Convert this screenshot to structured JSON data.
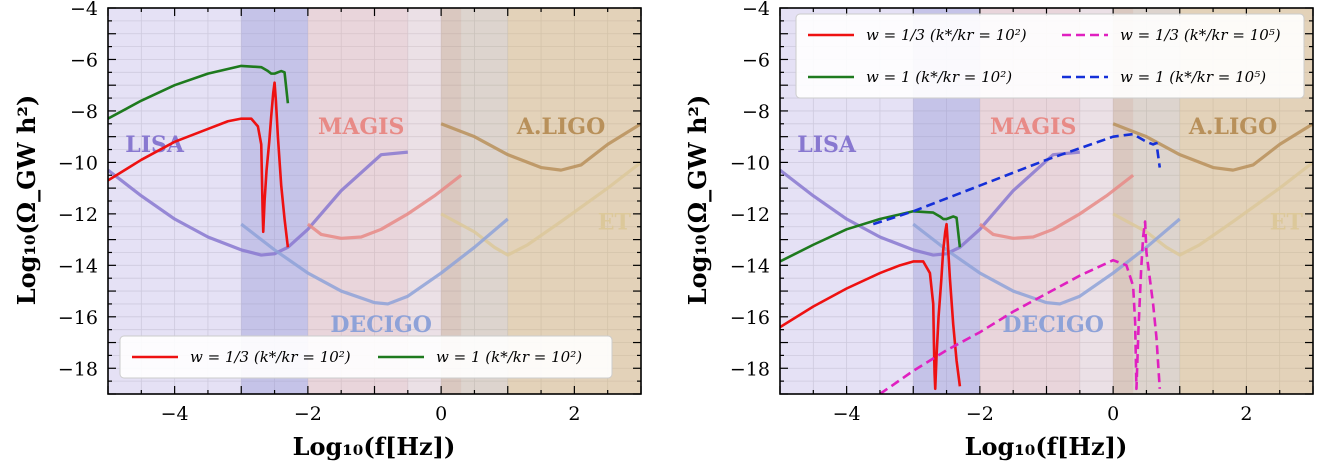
{
  "figure": {
    "axis_labels": {
      "y": "Log₁₀(Ω_GW h²)",
      "x": "Log₁₀(f[Hz])"
    }
  },
  "chart_data": [
    {
      "type": "line",
      "xlim": [
        -5,
        3
      ],
      "ylim": [
        -19,
        -4
      ],
      "xticks": [
        -4,
        -2,
        0,
        2
      ],
      "yticks": [
        -18,
        -16,
        -14,
        -12,
        -10,
        -8,
        -6,
        -4
      ],
      "grid": true,
      "legend_placement": "bottom",
      "detectors": [
        {
          "name": "LISA",
          "label": "LISA",
          "color": "#8878d0",
          "bands": [
            {
              "from": -5,
              "to": -3,
              "opacity": 0.22
            },
            {
              "from": -3,
              "to": -2,
              "opacity": 0.4
            }
          ],
          "curve": {
            "x": [
              -5,
              -4.5,
              -4,
              -3.5,
              -3,
              -2.7,
              -2.5,
              -2.3,
              -2,
              -1.5,
              -0.9,
              -0.5
            ],
            "y": [
              -10.3,
              -11.3,
              -12.2,
              -12.9,
              -13.4,
              -13.6,
              -13.55,
              -13.3,
              -12.6,
              -11.1,
              -9.7,
              -9.6
            ]
          }
        },
        {
          "name": "MAGIS",
          "label": "MAGIS",
          "color": "#e88a86",
          "bands": [
            {
              "from": -2,
              "to": -0.5,
              "opacity": 0.28
            },
            {
              "from": -0.5,
              "to": 0.3,
              "opacity": 0.18
            }
          ],
          "curve": {
            "x": [
              -2,
              -1.8,
              -1.5,
              -1.2,
              -0.9,
              -0.5,
              -0.1,
              0.3
            ],
            "y": [
              -12.4,
              -12.8,
              -12.95,
              -12.9,
              -12.6,
              -12.0,
              -11.3,
              -10.5
            ]
          }
        },
        {
          "name": "A.LIGO",
          "label": "A.LIGO",
          "color": "#b8905a",
          "bands": [
            {
              "from": 0,
              "to": 1,
              "opacity": 0.3
            },
            {
              "from": 1,
              "to": 3,
              "opacity": 0.38
            }
          ],
          "curve": {
            "x": [
              0,
              0.5,
              1,
              1.5,
              1.8,
              2.1,
              2.5,
              3
            ],
            "y": [
              -8.5,
              -9.0,
              -9.7,
              -10.2,
              -10.3,
              -10.1,
              -9.3,
              -8.5
            ]
          }
        },
        {
          "name": "ET",
          "label": "ET",
          "color": "#dcc89a",
          "bands": [
            {
              "from": 1,
              "to": 3,
              "opacity": 0.18
            }
          ],
          "curve": {
            "x": [
              0,
              0.5,
              0.8,
              1.0,
              1.3,
              1.8,
              2.5,
              3
            ],
            "y": [
              -12.0,
              -12.7,
              -13.3,
              -13.6,
              -13.2,
              -12.3,
              -11.0,
              -10.0
            ]
          }
        },
        {
          "name": "DECIGO",
          "label": "DECIGO",
          "color": "#8ea2d8",
          "bands": [
            {
              "from": -3,
              "to": 1,
              "opacity": 0.14
            }
          ],
          "curve": {
            "x": [
              -3,
              -2.5,
              -2,
              -1.5,
              -1,
              -0.8,
              -0.5,
              0,
              0.5,
              1
            ],
            "y": [
              -12.4,
              -13.4,
              -14.3,
              -15.0,
              -15.45,
              -15.5,
              -15.2,
              -14.3,
              -13.3,
              -12.2
            ]
          }
        }
      ],
      "series": [
        {
          "name": "w = 1/3 (k*/kr = 10²)",
          "color": "#ee1111",
          "dash": "solid",
          "x": [
            -5,
            -4.5,
            -4,
            -3.5,
            -3.2,
            -3.0,
            -2.85,
            -2.75,
            -2.7,
            -2.69,
            -2.68,
            -2.67,
            -2.65,
            -2.62,
            -2.58,
            -2.55,
            -2.52,
            -2.5,
            -2.48,
            -2.45,
            -2.4,
            -2.35,
            -2.3
          ],
          "y": [
            -10.7,
            -9.9,
            -9.2,
            -8.7,
            -8.4,
            -8.3,
            -8.3,
            -8.6,
            -9.3,
            -10.5,
            -11.8,
            -12.7,
            -11.5,
            -10.3,
            -9.2,
            -8.2,
            -7.3,
            -6.9,
            -7.6,
            -9.0,
            -10.9,
            -12.2,
            -13.3
          ]
        },
        {
          "name": "w = 1 (k*/kr = 10²)",
          "color": "#1e7a1e",
          "dash": "solid",
          "x": [
            -5,
            -4.5,
            -4,
            -3.5,
            -3,
            -2.7,
            -2.6,
            -2.55,
            -2.5,
            -2.45,
            -2.4,
            -2.35,
            -2.3
          ],
          "y": [
            -8.3,
            -7.6,
            -7.0,
            -6.55,
            -6.25,
            -6.3,
            -6.45,
            -6.55,
            -6.55,
            -6.5,
            -6.45,
            -6.5,
            -7.7
          ]
        }
      ],
      "legend": [
        {
          "text": "w = 1/3 (k*/kr = 10²)",
          "color": "#ee1111",
          "dash": "solid"
        },
        {
          "text": "w = 1 (k*/kr = 10²)",
          "color": "#1e7a1e",
          "dash": "solid"
        }
      ]
    },
    {
      "type": "line",
      "xlim": [
        -5,
        3
      ],
      "ylim": [
        -19,
        -4
      ],
      "xticks": [
        -4,
        -2,
        0,
        2
      ],
      "yticks": [
        -18,
        -16,
        -14,
        -12,
        -10,
        -8,
        -6,
        -4
      ],
      "grid": true,
      "legend_placement": "top",
      "detectors": [
        {
          "name": "LISA",
          "label": "LISA",
          "color": "#8878d0",
          "bands": [
            {
              "from": -5,
              "to": -3,
              "opacity": 0.22
            },
            {
              "from": -3,
              "to": -2,
              "opacity": 0.4
            }
          ],
          "curve": {
            "x": [
              -5,
              -4.5,
              -4,
              -3.5,
              -3,
              -2.7,
              -2.5,
              -2.3,
              -2,
              -1.5,
              -0.9,
              -0.5
            ],
            "y": [
              -10.3,
              -11.3,
              -12.2,
              -12.9,
              -13.4,
              -13.6,
              -13.55,
              -13.3,
              -12.6,
              -11.1,
              -9.7,
              -9.6
            ]
          }
        },
        {
          "name": "MAGIS",
          "label": "MAGIS",
          "color": "#e88a86",
          "bands": [
            {
              "from": -2,
              "to": -0.5,
              "opacity": 0.28
            },
            {
              "from": -0.5,
              "to": 0.3,
              "opacity": 0.18
            }
          ],
          "curve": {
            "x": [
              -2,
              -1.8,
              -1.5,
              -1.2,
              -0.9,
              -0.5,
              -0.1,
              0.3
            ],
            "y": [
              -12.4,
              -12.8,
              -12.95,
              -12.9,
              -12.6,
              -12.0,
              -11.3,
              -10.5
            ]
          }
        },
        {
          "name": "A.LIGO",
          "label": "A.LIGO",
          "color": "#b8905a",
          "bands": [
            {
              "from": 0,
              "to": 1,
              "opacity": 0.3
            },
            {
              "from": 1,
              "to": 3,
              "opacity": 0.38
            }
          ],
          "curve": {
            "x": [
              0,
              0.5,
              1,
              1.5,
              1.8,
              2.1,
              2.5,
              3
            ],
            "y": [
              -8.5,
              -9.0,
              -9.7,
              -10.2,
              -10.3,
              -10.1,
              -9.3,
              -8.5
            ]
          }
        },
        {
          "name": "ET",
          "label": "ET",
          "color": "#dcc89a",
          "bands": [
            {
              "from": 1,
              "to": 3,
              "opacity": 0.18
            }
          ],
          "curve": {
            "x": [
              0,
              0.5,
              0.8,
              1.0,
              1.3,
              1.8,
              2.5,
              3
            ],
            "y": [
              -12.0,
              -12.7,
              -13.3,
              -13.6,
              -13.2,
              -12.3,
              -11.0,
              -10.0
            ]
          }
        },
        {
          "name": "DECIGO",
          "label": "DECIGO",
          "color": "#8ea2d8",
          "bands": [
            {
              "from": -3,
              "to": 1,
              "opacity": 0.14
            }
          ],
          "curve": {
            "x": [
              -3,
              -2.5,
              -2,
              -1.5,
              -1,
              -0.8,
              -0.5,
              0,
              0.5,
              1
            ],
            "y": [
              -12.4,
              -13.4,
              -14.3,
              -15.0,
              -15.45,
              -15.5,
              -15.2,
              -14.3,
              -13.3,
              -12.2
            ]
          }
        }
      ],
      "series": [
        {
          "name": "w = 1/3 (k*/kr = 10²)",
          "color": "#ee1111",
          "dash": "solid",
          "x": [
            -5,
            -4.5,
            -4,
            -3.5,
            -3.2,
            -3.0,
            -2.85,
            -2.75,
            -2.7,
            -2.69,
            -2.68,
            -2.67,
            -2.65,
            -2.62,
            -2.58,
            -2.55,
            -2.52,
            -2.5,
            -2.48,
            -2.45,
            -2.4,
            -2.35,
            -2.3
          ],
          "y": [
            -16.4,
            -15.6,
            -14.9,
            -14.3,
            -14.0,
            -13.85,
            -13.85,
            -14.3,
            -15.5,
            -17.0,
            -18.2,
            -18.8,
            -17.5,
            -16.0,
            -14.6,
            -13.4,
            -12.7,
            -12.4,
            -13.2,
            -14.5,
            -16.3,
            -17.7,
            -18.7
          ]
        },
        {
          "name": "w = 1 (k*/kr = 10²)",
          "color": "#1e7a1e",
          "dash": "solid",
          "x": [
            -5,
            -4.5,
            -4,
            -3.5,
            -3,
            -2.7,
            -2.6,
            -2.55,
            -2.5,
            -2.45,
            -2.4,
            -2.35,
            -2.3
          ],
          "y": [
            -13.85,
            -13.2,
            -12.6,
            -12.2,
            -11.9,
            -11.95,
            -12.1,
            -12.2,
            -12.2,
            -12.15,
            -12.1,
            -12.15,
            -13.3
          ]
        },
        {
          "name": "w = 1/3 (k*/kr = 10⁵)",
          "color": "#e020c0",
          "dash": "dashed",
          "x": [
            -3.5,
            -3,
            -2.5,
            -2,
            -1.5,
            -1,
            -0.5,
            0,
            0.2,
            0.3,
            0.33,
            0.35,
            0.38,
            0.42,
            0.45,
            0.48,
            0.5,
            0.55,
            0.6,
            0.65,
            0.7
          ],
          "y": [
            -19.0,
            -18.1,
            -17.3,
            -16.6,
            -15.8,
            -15.1,
            -14.4,
            -13.8,
            -14.0,
            -14.8,
            -16.2,
            -18.8,
            -16.5,
            -14.2,
            -12.9,
            -12.3,
            -13.5,
            -14.5,
            -15.5,
            -16.8,
            -18.8
          ]
        },
        {
          "name": "w = 1 (k*/kr = 10⁵)",
          "color": "#1530d8",
          "dash": "dashed",
          "x": [
            -3.6,
            -3,
            -2.5,
            -2,
            -1.5,
            -1,
            -0.5,
            0,
            0.3,
            0.5,
            0.6,
            0.65,
            0.7
          ],
          "y": [
            -12.4,
            -11.9,
            -11.4,
            -10.9,
            -10.4,
            -9.9,
            -9.45,
            -9.0,
            -8.9,
            -9.2,
            -9.3,
            -9.25,
            -10.2
          ]
        }
      ],
      "legend": [
        {
          "text": "w = 1/3 (k*/kr = 10²)",
          "color": "#ee1111",
          "dash": "solid"
        },
        {
          "text": "w = 1/3 (k*/kr = 10⁵)",
          "color": "#e020c0",
          "dash": "dashed"
        },
        {
          "text": "w = 1 (k*/kr = 10²)",
          "color": "#1e7a1e",
          "dash": "solid"
        },
        {
          "text": "w = 1 (k*/kr = 10⁵)",
          "color": "#1530d8",
          "dash": "dashed"
        }
      ]
    }
  ]
}
